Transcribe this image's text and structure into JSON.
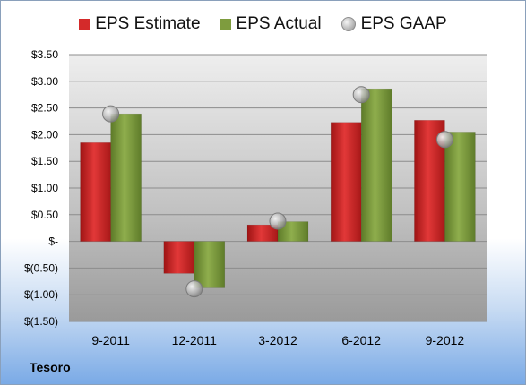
{
  "chart_data": {
    "type": "bar",
    "categories": [
      "9-2011",
      "12-2011",
      "3-2012",
      "6-2012",
      "9-2012"
    ],
    "series": [
      {
        "name": "EPS Estimate",
        "color": "#d42a2a",
        "values": [
          1.85,
          -0.6,
          0.31,
          2.23,
          2.27
        ]
      },
      {
        "name": "EPS Actual",
        "color": "#7e9c3e",
        "values": [
          2.39,
          -0.87,
          0.37,
          2.86,
          2.05
        ]
      }
    ],
    "markers": {
      "name": "EPS GAAP",
      "type": "scatter",
      "values": [
        2.39,
        -0.89,
        0.38,
        2.75,
        1.91
      ]
    },
    "ylim": [
      -1.5,
      3.5
    ],
    "yticks": [
      3.5,
      3.0,
      2.5,
      2.0,
      1.5,
      1.0,
      0.5,
      0,
      -0.5,
      -1.0,
      -1.5
    ],
    "ytick_labels": [
      "$3.50",
      "$3.00",
      "$2.50",
      "$2.00",
      "$1.50",
      "$1.00",
      "$0.50",
      "$-",
      "$(0.50)",
      "$(1.00)",
      "$(1.50)"
    ],
    "grid": true,
    "legend_position": "top"
  },
  "footer": {
    "company": "Tesoro"
  }
}
